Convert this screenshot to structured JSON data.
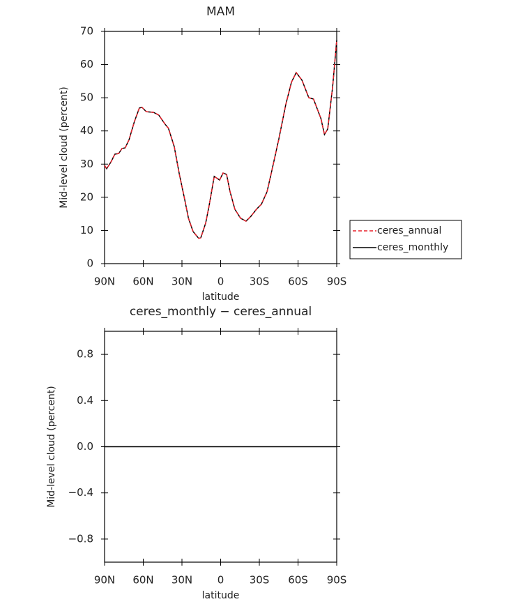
{
  "chart_data": [
    {
      "type": "line",
      "title": "MAM",
      "xlabel": "latitude",
      "ylabel": "Mid-level cloud (percent)",
      "x": [
        90,
        88.4,
        85,
        82,
        79,
        76.5,
        74,
        71,
        67,
        63,
        61,
        57.6,
        52,
        48,
        43,
        40.5,
        36,
        32,
        28,
        25,
        21.4,
        17,
        15.4,
        11.6,
        9,
        5,
        3.5,
        0.8,
        -1.9,
        -4.6,
        -7.3,
        -11,
        -15.4,
        -19.7,
        -23.5,
        -27.8,
        -31.6,
        -36,
        -39.7,
        -45,
        -50.5,
        -54.9,
        -58.6,
        -63,
        -68.4,
        -72,
        -77.8,
        -80.5,
        -83,
        -86.8,
        -90
      ],
      "series": [
        {
          "name": "ceres_annual",
          "color": "#e8202a",
          "dash": true,
          "values": [
            29.6,
            28.6,
            30.7,
            33,
            33.2,
            34.7,
            34.9,
            37.4,
            42.7,
            46.9,
            47.1,
            45.8,
            45.6,
            44.8,
            42,
            40.8,
            35.3,
            26.9,
            19.6,
            13.7,
            9.7,
            7.6,
            7.8,
            12.2,
            17.4,
            26.3,
            25.9,
            25.2,
            27.3,
            26.9,
            21.7,
            16.4,
            13.7,
            12.8,
            14.3,
            16.4,
            17.9,
            21.7,
            28,
            37.4,
            47.9,
            54.7,
            57.6,
            55.3,
            50,
            49.6,
            43.7,
            38.9,
            40.6,
            53.2,
            67.3
          ]
        },
        {
          "name": "ceres_monthly",
          "color": "#000000",
          "dash": false,
          "values": [
            29.6,
            28.6,
            30.7,
            33,
            33.2,
            34.7,
            34.9,
            37.4,
            42.7,
            46.9,
            47.1,
            45.8,
            45.6,
            44.8,
            42,
            40.8,
            35.3,
            26.9,
            19.6,
            13.7,
            9.7,
            7.6,
            7.8,
            12.2,
            17.4,
            26.3,
            25.9,
            25.2,
            27.3,
            26.9,
            21.7,
            16.4,
            13.7,
            12.8,
            14.3,
            16.4,
            17.9,
            21.7,
            28,
            37.4,
            47.9,
            54.7,
            57.6,
            55.3,
            50,
            49.6,
            43.7,
            38.9,
            40.6,
            53.2,
            67.3
          ]
        }
      ],
      "xlim": [
        90,
        -90
      ],
      "xticks": [
        {
          "value": 90,
          "label": "90N"
        },
        {
          "value": 60,
          "label": "60N"
        },
        {
          "value": 30,
          "label": "30N"
        },
        0,
        {
          "value": -30,
          "label": "30S"
        },
        {
          "value": -60,
          "label": "60S"
        },
        {
          "value": -90,
          "label": "90S"
        }
      ],
      "ylim": [
        0,
        70
      ],
      "yticks": [
        0,
        10,
        20,
        30,
        40,
        50,
        60,
        70
      ],
      "legend": "right"
    },
    {
      "type": "line",
      "title": "ceres_monthly − ceres_annual",
      "xlabel": "latitude",
      "ylabel": "Mid-level cloud (percent)",
      "x": [
        90,
        -90
      ],
      "series": [
        {
          "name": "ceres_monthly − ceres_annual",
          "color": "#000000",
          "dash": false,
          "values": [
            0,
            0
          ]
        }
      ],
      "xlim": [
        90,
        -90
      ],
      "xticks": [
        {
          "value": 90,
          "label": "90N"
        },
        {
          "value": 60,
          "label": "60N"
        },
        {
          "value": 30,
          "label": "30N"
        },
        0,
        {
          "value": -30,
          "label": "30S"
        },
        {
          "value": -60,
          "label": "60S"
        },
        {
          "value": -90,
          "label": "90S"
        }
      ],
      "ylim": [
        -1,
        1
      ],
      "yticks": [
        {
          "value": -0.8,
          "label": "−0.8"
        },
        {
          "value": -0.4,
          "label": "−0.4"
        },
        {
          "value": 0,
          "label": "0.0"
        },
        0.4,
        0.8
      ],
      "legend": "none"
    }
  ]
}
